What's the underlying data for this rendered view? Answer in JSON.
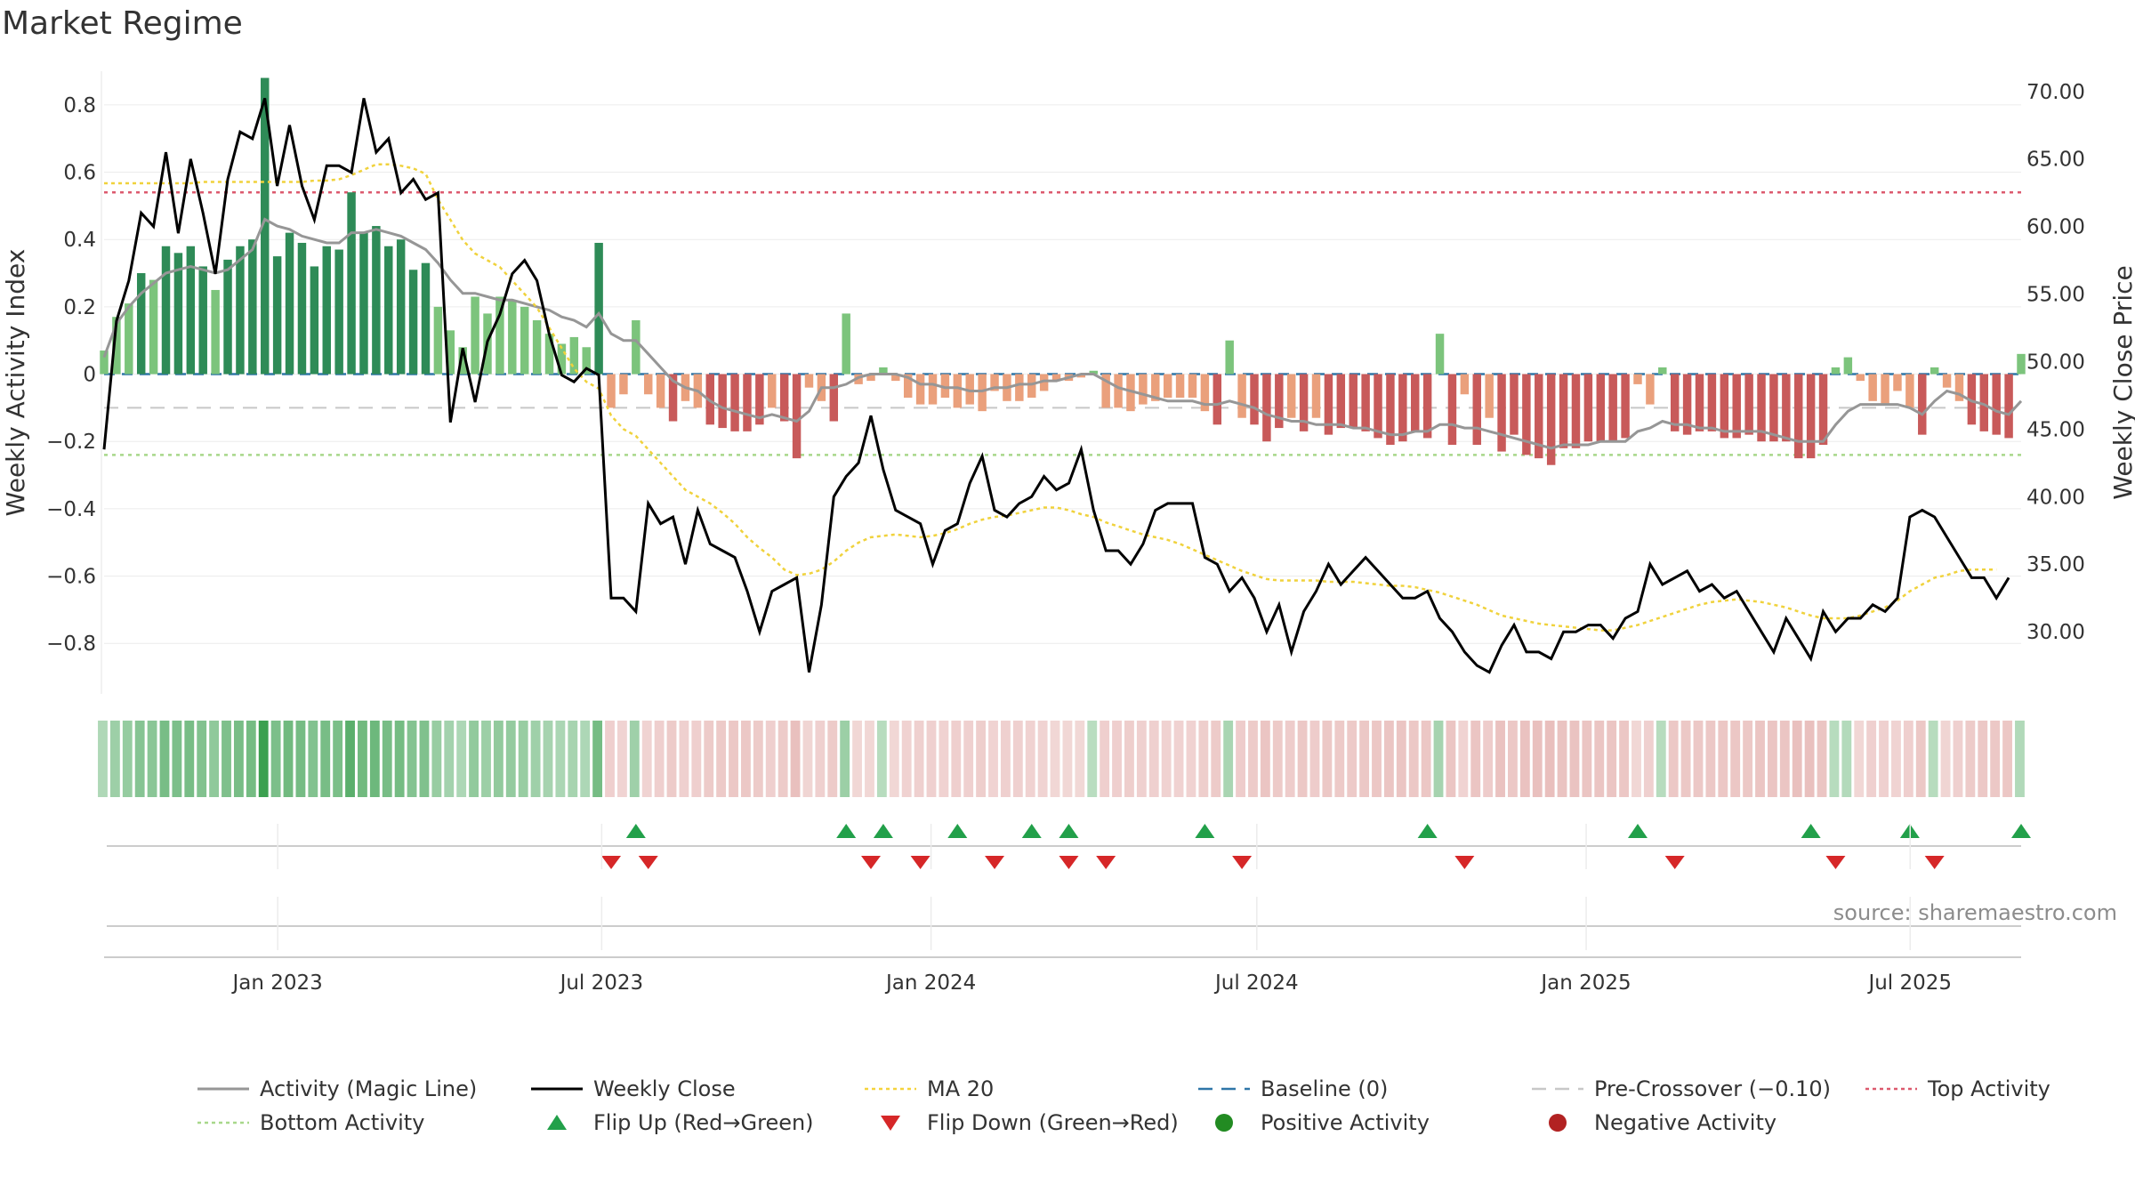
{
  "title": "Market Regime",
  "source": "source: sharemaestro.com",
  "chart_data": {
    "type": "bar",
    "left_axis": {
      "label": "Weekly Activity Index",
      "range": [
        -0.95,
        0.9
      ],
      "ticks": [
        0.8,
        0.6,
        0.4,
        0.2,
        0,
        -0.2,
        -0.4,
        -0.6,
        -0.8
      ],
      "tick_labels": [
        "0.8",
        "0.6",
        "0.4",
        "0.2",
        "0",
        "−0.2",
        "−0.4",
        "−0.6",
        "−0.8"
      ]
    },
    "right_axis": {
      "label": "Weekly Close Price",
      "range": [
        25.4,
        71.5
      ],
      "ticks": [
        70,
        65,
        60,
        55,
        50,
        45,
        40,
        35,
        30
      ],
      "tick_labels": [
        "70.00",
        "65.00",
        "60.00",
        "55.00",
        "50.00",
        "45.00",
        "40.00",
        "35.00",
        "30.00"
      ]
    },
    "x_axis": {
      "start": "2022-09-26",
      "end": "2025-09-01",
      "ticks": [
        {
          "date": "2023-01-01",
          "label": "Jan 2023"
        },
        {
          "date": "2023-07-01",
          "label": "Jul 2023"
        },
        {
          "date": "2024-01-01",
          "label": "Jan 2024"
        },
        {
          "date": "2024-07-01",
          "label": "Jul 2024"
        },
        {
          "date": "2025-01-01",
          "label": "Jan 2025"
        },
        {
          "date": "2025-07-01",
          "label": "Jul 2025"
        }
      ]
    },
    "reference_lines": {
      "baseline": 0,
      "pre_crossover": -0.1,
      "top_activity": 0.54,
      "bottom_activity": -0.24
    },
    "activity": [
      0.07,
      0.17,
      0.21,
      0.3,
      0.28,
      0.38,
      0.36,
      0.38,
      0.32,
      0.25,
      0.34,
      0.38,
      0.4,
      0.88,
      0.35,
      0.42,
      0.39,
      0.32,
      0.38,
      0.37,
      0.54,
      0.42,
      0.44,
      0.38,
      0.4,
      0.31,
      0.33,
      0.2,
      0.13,
      0.08,
      0.23,
      0.18,
      0.23,
      0.22,
      0.2,
      0.16,
      0.12,
      0.09,
      0.11,
      0.08,
      0.39,
      -0.1,
      -0.06,
      0.16,
      -0.06,
      -0.1,
      -0.14,
      -0.08,
      -0.1,
      -0.15,
      -0.16,
      -0.17,
      -0.17,
      -0.15,
      -0.1,
      -0.14,
      -0.25,
      -0.04,
      -0.08,
      -0.14,
      0.18,
      -0.03,
      -0.02,
      0.02,
      -0.02,
      -0.07,
      -0.09,
      -0.09,
      -0.07,
      -0.1,
      -0.09,
      -0.11,
      -0.05,
      -0.08,
      -0.08,
      -0.07,
      -0.05,
      -0.02,
      -0.02,
      -0.01,
      0.01,
      -0.1,
      -0.1,
      -0.11,
      -0.09,
      -0.08,
      -0.07,
      -0.07,
      -0.07,
      -0.11,
      -0.15,
      0.1,
      -0.13,
      -0.15,
      -0.2,
      -0.16,
      -0.13,
      -0.17,
      -0.13,
      -0.18,
      -0.16,
      -0.16,
      -0.17,
      -0.19,
      -0.21,
      -0.2,
      -0.17,
      -0.19,
      0.12,
      -0.21,
      -0.06,
      -0.21,
      -0.13,
      -0.23,
      -0.18,
      -0.24,
      -0.25,
      -0.27,
      -0.22,
      -0.22,
      -0.2,
      -0.2,
      -0.2,
      -0.19,
      -0.03,
      -0.09,
      0.02,
      -0.17,
      -0.18,
      -0.17,
      -0.17,
      -0.19,
      -0.19,
      -0.18,
      -0.2,
      -0.2,
      -0.2,
      -0.25,
      -0.25,
      -0.21,
      0.02,
      0.05,
      -0.02,
      -0.08,
      -0.09,
      -0.05,
      -0.1,
      -0.18,
      0.02,
      -0.04,
      -0.08,
      -0.15,
      -0.17,
      -0.18,
      -0.19,
      0.06
    ],
    "activity_line": [
      0.05,
      0.15,
      0.2,
      0.24,
      0.27,
      0.3,
      0.31,
      0.32,
      0.31,
      0.3,
      0.31,
      0.34,
      0.37,
      0.46,
      0.44,
      0.43,
      0.41,
      0.4,
      0.39,
      0.39,
      0.42,
      0.42,
      0.43,
      0.42,
      0.41,
      0.39,
      0.37,
      0.33,
      0.28,
      0.24,
      0.24,
      0.23,
      0.22,
      0.22,
      0.21,
      0.2,
      0.19,
      0.17,
      0.16,
      0.14,
      0.18,
      0.12,
      0.1,
      0.1,
      0.06,
      0.02,
      -0.02,
      -0.04,
      -0.05,
      -0.08,
      -0.1,
      -0.11,
      -0.12,
      -0.13,
      -0.12,
      -0.13,
      -0.14,
      -0.11,
      -0.04,
      -0.04,
      -0.03,
      -0.01,
      0,
      0,
      0,
      -0.01,
      -0.03,
      -0.03,
      -0.04,
      -0.04,
      -0.05,
      -0.05,
      -0.04,
      -0.04,
      -0.03,
      -0.03,
      -0.02,
      -0.02,
      -0.01,
      0,
      0,
      -0.02,
      -0.04,
      -0.05,
      -0.06,
      -0.07,
      -0.08,
      -0.08,
      -0.08,
      -0.09,
      -0.09,
      -0.08,
      -0.09,
      -0.1,
      -0.12,
      -0.13,
      -0.14,
      -0.14,
      -0.15,
      -0.15,
      -0.15,
      -0.16,
      -0.16,
      -0.17,
      -0.18,
      -0.18,
      -0.17,
      -0.17,
      -0.15,
      -0.15,
      -0.16,
      -0.16,
      -0.17,
      -0.18,
      -0.19,
      -0.2,
      -0.21,
      -0.22,
      -0.21,
      -0.21,
      -0.21,
      -0.2,
      -0.2,
      -0.2,
      -0.17,
      -0.16,
      -0.14,
      -0.15,
      -0.15,
      -0.16,
      -0.16,
      -0.17,
      -0.17,
      -0.17,
      -0.17,
      -0.18,
      -0.19,
      -0.2,
      -0.2,
      -0.2,
      -0.15,
      -0.11,
      -0.09,
      -0.09,
      -0.09,
      -0.09,
      -0.1,
      -0.12,
      -0.08,
      -0.05,
      -0.06,
      -0.08,
      -0.09,
      -0.11,
      -0.12,
      -0.08
    ],
    "weekly_close": [
      43.5,
      53,
      56,
      61,
      60,
      65.5,
      59.5,
      65,
      61,
      56.5,
      63.5,
      67,
      66.5,
      69.5,
      63,
      67.5,
      63,
      60.5,
      64.5,
      64.5,
      64,
      69.5,
      65.5,
      66.5,
      62.5,
      63.5,
      62,
      62.5,
      45.5,
      51,
      47,
      51.5,
      53.5,
      56.5,
      57.5,
      56,
      52,
      49,
      48.5,
      49.5,
      49,
      32.5,
      32.5,
      31.5,
      39.5,
      38,
      38.5,
      35,
      39,
      36.5,
      36,
      35.5,
      33,
      30,
      33,
      33.5,
      34,
      27,
      32,
      40,
      41.5,
      42.5,
      46,
      42,
      39,
      38.5,
      38,
      35,
      37.5,
      38,
      41,
      43,
      39,
      38.5,
      39.5,
      40,
      41.5,
      40.5,
      41,
      43.5,
      39,
      36,
      36,
      35,
      36.5,
      39,
      39.5,
      39.5,
      39.5,
      35.5,
      35,
      33,
      34,
      32.5,
      30,
      32,
      28.5,
      31.5,
      33,
      35,
      33.5,
      34.5,
      35.5,
      34.5,
      33.5,
      32.5,
      32.5,
      33,
      31,
      30,
      28.5,
      27.5,
      27,
      29,
      30.5,
      28.5,
      28.5,
      28,
      30,
      30,
      30.5,
      30.5,
      29.5,
      31,
      31.5,
      35,
      33.5,
      34,
      34.5,
      33,
      33.5,
      32.5,
      33,
      31.5,
      30,
      28.5,
      31,
      29.5,
      28,
      31.5,
      30,
      31,
      31,
      32,
      31.5,
      32.5,
      38.5,
      39,
      38.5,
      37,
      35.5,
      34,
      34,
      32.5,
      34
    ],
    "ma20": [
      63.2,
      63.2,
      63.2,
      63.2,
      63.2,
      63.2,
      63.2,
      63.2,
      63.3,
      63.3,
      63.3,
      63.3,
      63.3,
      63.3,
      63.3,
      63.3,
      63.3,
      63.4,
      63.4,
      63.5,
      63.8,
      64.2,
      64.6,
      64.6,
      64.5,
      64.3,
      63.9,
      62,
      60.5,
      59,
      58,
      57.5,
      57,
      56,
      55,
      54,
      52.5,
      51,
      49.5,
      48.5,
      48,
      46,
      45,
      44.5,
      43.5,
      42.5,
      41.5,
      40.5,
      40,
      39.5,
      38.8,
      38,
      37,
      36.2,
      35.5,
      34.6,
      34.2,
      34.3,
      34.6,
      35.2,
      36,
      36.6,
      37,
      37.1,
      37.2,
      37.1,
      37,
      37.1,
      37.3,
      37.6,
      38,
      38.3,
      38.5,
      38.6,
      38.8,
      39,
      39.2,
      39.2,
      39,
      38.7,
      38.5,
      38.1,
      37.8,
      37.5,
      37.2,
      37,
      36.8,
      36.5,
      36.1,
      35.7,
      35.3,
      34.9,
      34.5,
      34.2,
      33.9,
      33.8,
      33.8,
      33.8,
      33.8,
      33.7,
      33.7,
      33.7,
      33.6,
      33.5,
      33.4,
      33.4,
      33.3,
      33.1,
      32.9,
      32.6,
      32.3,
      32,
      31.6,
      31.2,
      31,
      30.8,
      30.6,
      30.5,
      30.4,
      30.3,
      30.2,
      30.1,
      30.1,
      30.3,
      30.5,
      30.8,
      31.1,
      31.4,
      31.7,
      32,
      32.2,
      32.3,
      32.4,
      32.3,
      32.2,
      32,
      31.8,
      31.5,
      31.2,
      31,
      31,
      31,
      31.2,
      31.5,
      31.8,
      32.3,
      33,
      33.5,
      34,
      34.2,
      34.5,
      34.6,
      34.6,
      34.6
    ],
    "flip_up_weeks": [
      43,
      60,
      63,
      69,
      75,
      78,
      89,
      107,
      124,
      138,
      146,
      155
    ],
    "flip_down_weeks": [
      41,
      44,
      62,
      66,
      72,
      78,
      81,
      92,
      110,
      127,
      140,
      148
    ],
    "legend": [
      {
        "label": "Activity (Magic Line)",
        "kind": "line",
        "color": "#969696"
      },
      {
        "label": "Weekly Close",
        "kind": "line",
        "color": "#000000"
      },
      {
        "label": "MA 20",
        "kind": "dotted",
        "color": "#f5d33c"
      },
      {
        "label": "Baseline (0)",
        "kind": "dashed",
        "color": "#2f76a8"
      },
      {
        "label": "Pre-Crossover (−0.10)",
        "kind": "dashed",
        "color": "#c8c8c8"
      },
      {
        "label": "Top Activity",
        "kind": "dotted",
        "color": "#dc5a6e"
      },
      {
        "label": "Bottom Activity",
        "kind": "dotted",
        "color": "#a8d88a"
      },
      {
        "label": "Flip Up (Red→Green)",
        "kind": "triangle-up",
        "color": "#22a04a"
      },
      {
        "label": "Flip Down (Green→Red)",
        "kind": "triangle-down",
        "color": "#d62728"
      },
      {
        "label": "Positive Activity",
        "kind": "dot",
        "color": "#228b22"
      },
      {
        "label": "Negative Activity",
        "kind": "dot",
        "color": "#b22222"
      }
    ]
  },
  "colors": {
    "pos_strong": "#2e8b57",
    "pos_weak": "#7cc47c",
    "neg_strong": "#c85a5a",
    "neg_weak": "#eaa07c",
    "close": "#000000",
    "magic": "#969696",
    "ma": "#f0d23c",
    "top": "#dc5a6e",
    "bottom": "#a8d88a",
    "pre": "#c8c8c8",
    "baseline": "#2f76a8",
    "flip_up": "#22a04a",
    "flip_down": "#d62728"
  }
}
